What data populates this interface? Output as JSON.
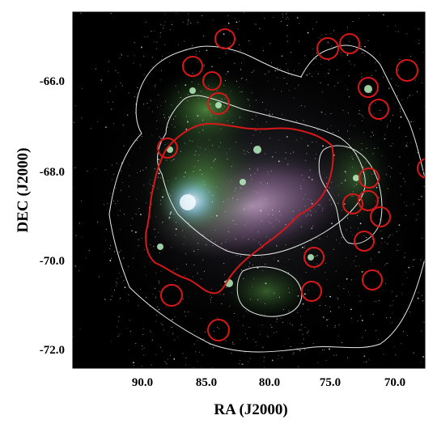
{
  "figure": {
    "xlabel": "RA (J2000)",
    "ylabel": "DEC (J2000)",
    "xticks": [
      "90.0",
      "85.0",
      "80.0",
      "75.0",
      "70.0"
    ],
    "yticks": [
      "-66.0",
      "-68.0",
      "-70.0",
      "-72.0"
    ]
  },
  "colors": {
    "background": "#ffffff",
    "sky": "#000000",
    "contour_white": "#e8e8e8",
    "contour_red": "#d81818",
    "glow_cyan": "#9fe6ff",
    "glow_green": "#3f8f3a",
    "glow_magenta": "#c68fd0"
  },
  "description_icons": [
    "star-field",
    "galaxy-glow",
    "red-contour",
    "white-contour",
    "red-circle"
  ]
}
